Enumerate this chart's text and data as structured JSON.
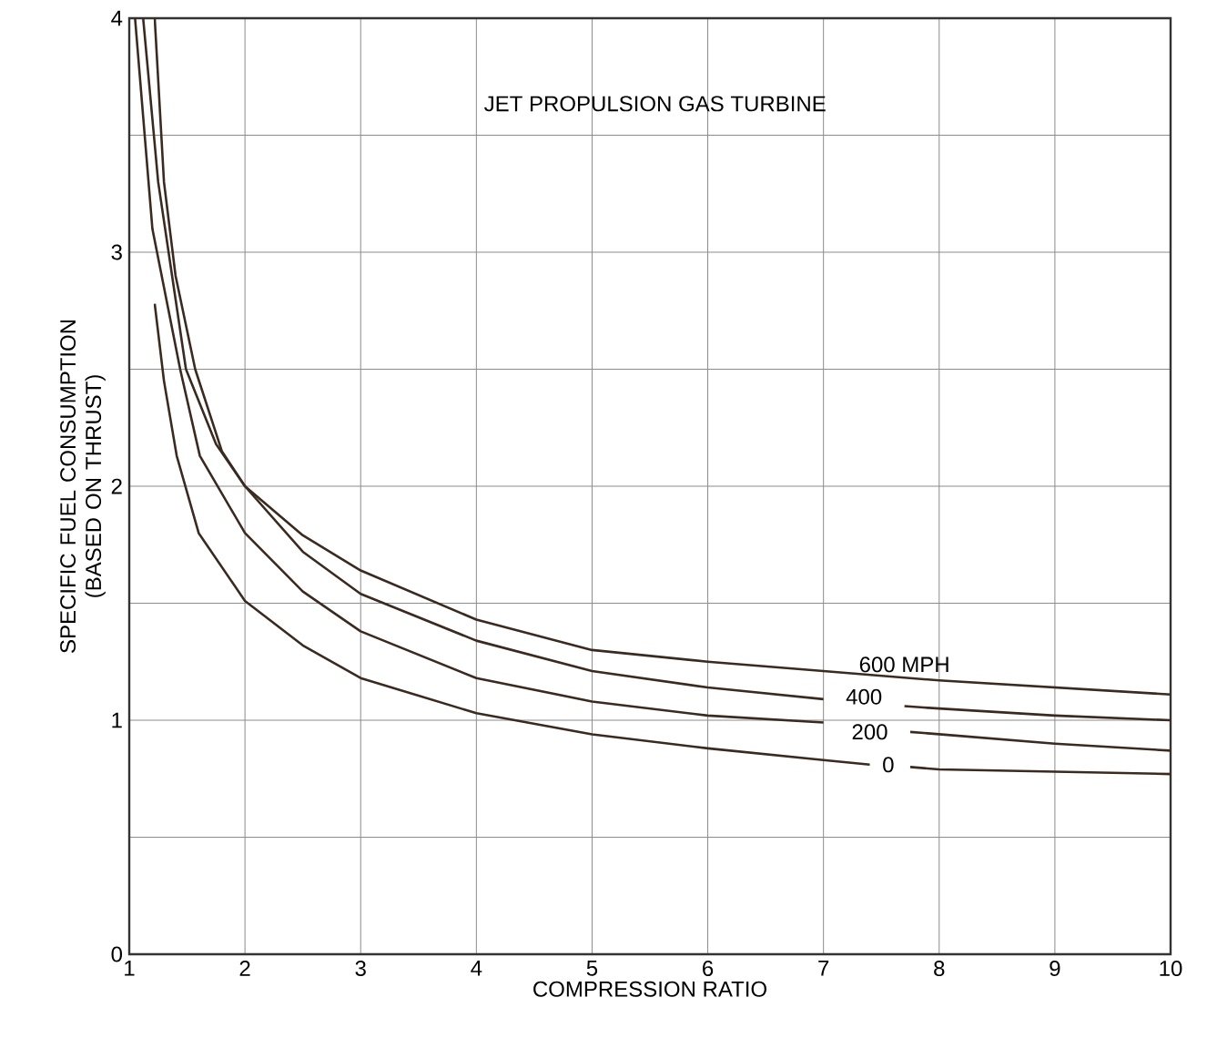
{
  "chart_data": {
    "type": "line",
    "title": "JET PROPULSION GAS TURBINE",
    "xlabel": "COMPRESSION RATIO",
    "ylabel": "SPECIFIC FUEL CONSUMPTION (BASED ON THRUST)",
    "xlim": [
      1,
      10
    ],
    "ylim": [
      0,
      4
    ],
    "xticks": [
      1,
      2,
      3,
      4,
      5,
      6,
      7,
      8,
      9,
      10
    ],
    "yticks": [
      0,
      {
        "value": 0.5,
        "label": null
      },
      1,
      {
        "value": 1.5,
        "label": null
      },
      2,
      {
        "value": 2.5,
        "label": null
      },
      3,
      {
        "value": 3.5,
        "label": null
      },
      4
    ],
    "grid": true,
    "marker": "none",
    "line_style": "solid",
    "series": [
      {
        "color": "#3a2a20",
        "x": [
          1.12,
          1.25,
          1.37,
          1.49,
          1.75,
          2,
          2.5,
          3,
          4,
          5,
          6,
          7,
          8,
          9,
          10
        ],
        "values": [
          4,
          3.3,
          2.9,
          2.5,
          2.18,
          2.0,
          1.79,
          1.64,
          1.43,
          1.3,
          1.25,
          1.21,
          1.17,
          1.14,
          1.11
        ]
      },
      {
        "color": "#3a2a20",
        "x": [
          1.22,
          1.3,
          1.4,
          1.57,
          1.8,
          2,
          2.5,
          3,
          4,
          5,
          6,
          7,
          7.3,
          7.7,
          8,
          9,
          10
        ],
        "values": [
          4,
          3.3,
          2.9,
          2.5,
          2.15,
          2.0,
          1.72,
          1.54,
          1.34,
          1.21,
          1.14,
          1.09,
          null,
          1.06,
          1.05,
          1.02,
          1.0
        ]
      },
      {
        "color": "#3a2a20",
        "x": [
          1.05,
          1.2,
          1.44,
          1.61,
          2,
          2.5,
          3,
          4,
          5,
          6,
          7,
          7.3,
          7.75,
          8,
          9,
          10
        ],
        "values": [
          4,
          3.1,
          2.5,
          2.13,
          1.8,
          1.55,
          1.38,
          1.18,
          1.08,
          1.02,
          0.99,
          null,
          0.95,
          0.94,
          0.9,
          0.87
        ]
      },
      {
        "color": "#3a2a20",
        "x": [
          1.22,
          1.3,
          1.41,
          1.6,
          2,
          2.5,
          3,
          4,
          5,
          6,
          7,
          7.4,
          7.55,
          7.75,
          8,
          9,
          10
        ],
        "values": [
          2.78,
          2.45,
          2.13,
          1.8,
          1.51,
          1.32,
          1.18,
          1.03,
          0.94,
          0.88,
          0.83,
          0.81,
          null,
          0.8,
          0.79,
          0.78,
          0.77
        ]
      }
    ],
    "annotations": [
      {
        "text": "600 MPH",
        "x": 7.7,
        "y": 1.18
      },
      {
        "text": "400",
        "x": 7.35,
        "y": 1.1
      },
      {
        "text": "200",
        "x": 7.4,
        "y": 0.95
      },
      {
        "text": "0",
        "x": 7.56,
        "y": 0.81
      }
    ]
  }
}
